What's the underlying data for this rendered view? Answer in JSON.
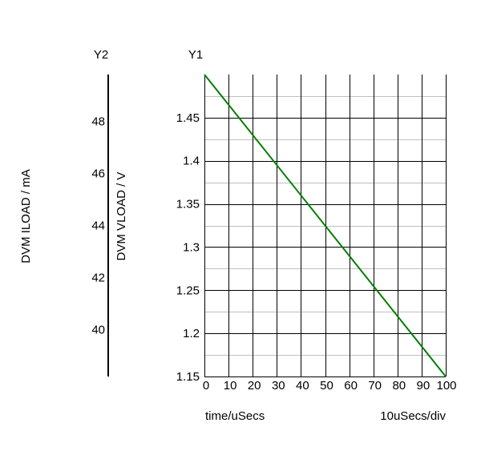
{
  "chart_data": {
    "type": "line",
    "x_label": "time/uSecs",
    "x_scale_label": "10uSecs/div",
    "xlim": [
      0,
      100
    ],
    "x_ticks": [
      0,
      10,
      20,
      30,
      40,
      50,
      60,
      70,
      80,
      90,
      100
    ],
    "y1": {
      "label": "DVM VLOAD / V",
      "axis_name": "Y1",
      "lim": [
        1.15,
        1.5
      ],
      "ticks": [
        1.15,
        1.2,
        1.25,
        1.3,
        1.35,
        1.4,
        1.45
      ]
    },
    "y2": {
      "label": "DVM ILOAD / mA",
      "axis_name": "Y2",
      "lim": [
        38.2,
        49.8
      ],
      "ticks": [
        40,
        42,
        44,
        46,
        48
      ]
    },
    "grid": true,
    "series": [
      {
        "axis": "y1",
        "color": "#008000",
        "x": [
          0,
          100
        ],
        "y": [
          1.5,
          1.15
        ]
      }
    ],
    "colors": {
      "grid_major": "#000000",
      "grid_minor": "#bfbfbf",
      "trace": "#008000"
    }
  }
}
